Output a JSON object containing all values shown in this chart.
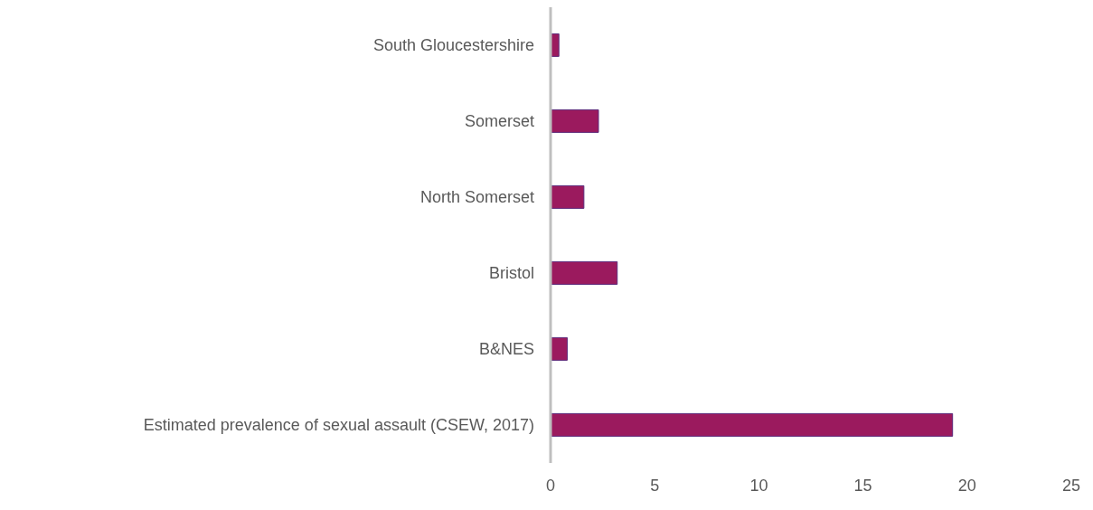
{
  "chart_data": {
    "type": "bar",
    "orientation": "horizontal",
    "categories": [
      "South Gloucestershire",
      "Somerset",
      "North Somerset",
      "Bristol",
      "B&NES",
      "Estimated prevalence of sexual assault (CSEW, 2017)"
    ],
    "values": [
      0.4,
      2.3,
      1.6,
      3.2,
      0.8,
      19.3
    ],
    "color": "#9b1a5e",
    "xlim": [
      0,
      25
    ],
    "xticks": [
      0,
      5,
      10,
      15,
      20,
      25
    ],
    "grid": false,
    "legend": false
  }
}
